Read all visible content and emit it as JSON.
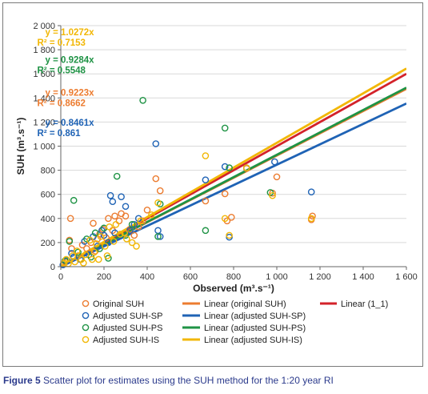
{
  "caption": {
    "label": "Figure 5",
    "text": "Scatter plot for estimates using the SUH method for the 1:20 year RI"
  },
  "chart_data": {
    "type": "scatter",
    "xlabel": "Observed (m³.s⁻¹)",
    "ylabel": "SUH (m³.s⁻¹)",
    "xlim": [
      0,
      1600
    ],
    "ylim": [
      0,
      2000
    ],
    "x_ticks": [
      "0",
      "200",
      "400",
      "600",
      "800",
      "1 000",
      "1 200",
      "1 400",
      "1 600"
    ],
    "y_ticks": [
      "0",
      "200",
      "400",
      "600",
      "800",
      "1 000",
      "1 200",
      "1 400",
      "1 600",
      "1 800",
      "2 000"
    ],
    "grid": "horizontal",
    "legend_position": "bottom",
    "annotations": [
      {
        "eq": "y = 1.0272x",
        "r2": "R² = 0.7153",
        "color": "#f2b705",
        "at": [
          150,
          1920
        ]
      },
      {
        "eq": "y = 0.9284x",
        "r2": "R² = 0.5548",
        "color": "#1f9345",
        "at": [
          150,
          1690
        ]
      },
      {
        "eq": "y = 0.9223x",
        "r2": "R² = 0.8662",
        "color": "#ec7c30",
        "at": [
          150,
          1420
        ]
      },
      {
        "eq": "y = 0.8461x",
        "r2": "R² = 0.861",
        "color": "#1f63b5",
        "at": [
          150,
          1170
        ]
      }
    ],
    "series": [
      {
        "name": "Original SUH",
        "kind": "marker",
        "color": "#ec7c30",
        "points": [
          [
            20,
            40
          ],
          [
            40,
            220
          ],
          [
            45,
            400
          ],
          [
            50,
            150
          ],
          [
            80,
            90
          ],
          [
            100,
            180
          ],
          [
            120,
            150
          ],
          [
            140,
            200
          ],
          [
            150,
            360
          ],
          [
            160,
            130
          ],
          [
            170,
            230
          ],
          [
            180,
            270
          ],
          [
            195,
            310
          ],
          [
            200,
            260
          ],
          [
            210,
            240
          ],
          [
            220,
            400
          ],
          [
            240,
            300
          ],
          [
            250,
            420
          ],
          [
            270,
            380
          ],
          [
            280,
            440
          ],
          [
            300,
            420
          ],
          [
            320,
            310
          ],
          [
            340,
            260
          ],
          [
            360,
            330
          ],
          [
            380,
            380
          ],
          [
            400,
            470
          ],
          [
            440,
            730
          ],
          [
            460,
            630
          ],
          [
            670,
            545
          ],
          [
            760,
            605
          ],
          [
            770,
            380
          ],
          [
            790,
            410
          ],
          [
            860,
            815
          ],
          [
            980,
            610
          ],
          [
            1000,
            745
          ],
          [
            1160,
            390
          ],
          [
            1165,
            420
          ]
        ]
      },
      {
        "name": "Adjusted SUH-SP",
        "kind": "marker",
        "color": "#1f63b5",
        "points": [
          [
            10,
            15
          ],
          [
            30,
            50
          ],
          [
            50,
            110
          ],
          [
            60,
            80
          ],
          [
            90,
            60
          ],
          [
            110,
            210
          ],
          [
            130,
            100
          ],
          [
            150,
            250
          ],
          [
            170,
            170
          ],
          [
            190,
            300
          ],
          [
            200,
            260
          ],
          [
            220,
            200
          ],
          [
            230,
            590
          ],
          [
            240,
            540
          ],
          [
            250,
            280
          ],
          [
            280,
            580
          ],
          [
            300,
            500
          ],
          [
            320,
            300
          ],
          [
            340,
            350
          ],
          [
            360,
            400
          ],
          [
            440,
            1020
          ],
          [
            450,
            300
          ],
          [
            460,
            250
          ],
          [
            670,
            720
          ],
          [
            760,
            830
          ],
          [
            780,
            245
          ],
          [
            860,
            820
          ],
          [
            990,
            870
          ],
          [
            1160,
            620
          ]
        ]
      },
      {
        "name": "Adjusted SUH-PS",
        "kind": "marker",
        "color": "#1f9345",
        "points": [
          [
            20,
            50
          ],
          [
            40,
            210
          ],
          [
            60,
            550
          ],
          [
            80,
            120
          ],
          [
            120,
            230
          ],
          [
            140,
            80
          ],
          [
            160,
            280
          ],
          [
            180,
            150
          ],
          [
            200,
            320
          ],
          [
            220,
            70
          ],
          [
            260,
            750
          ],
          [
            300,
            260
          ],
          [
            330,
            350
          ],
          [
            380,
            1380
          ],
          [
            450,
            250
          ],
          [
            460,
            520
          ],
          [
            670,
            300
          ],
          [
            760,
            1150
          ],
          [
            780,
            820
          ],
          [
            970,
            615
          ]
        ]
      },
      {
        "name": "Adjusted SUH-IS",
        "kind": "marker",
        "color": "#f2b705",
        "points": [
          [
            15,
            30
          ],
          [
            25,
            60
          ],
          [
            35,
            25
          ],
          [
            55,
            90
          ],
          [
            65,
            40
          ],
          [
            75,
            130
          ],
          [
            95,
            60
          ],
          [
            105,
            30
          ],
          [
            115,
            100
          ],
          [
            135,
            220
          ],
          [
            145,
            60
          ],
          [
            155,
            120
          ],
          [
            165,
            190
          ],
          [
            175,
            60
          ],
          [
            185,
            250
          ],
          [
            205,
            170
          ],
          [
            215,
            90
          ],
          [
            225,
            330
          ],
          [
            245,
            210
          ],
          [
            255,
            350
          ],
          [
            275,
            270
          ],
          [
            295,
            280
          ],
          [
            305,
            230
          ],
          [
            330,
            200
          ],
          [
            350,
            170
          ],
          [
            370,
            380
          ],
          [
            420,
            430
          ],
          [
            450,
            530
          ],
          [
            670,
            920
          ],
          [
            760,
            400
          ],
          [
            780,
            260
          ],
          [
            860,
            820
          ],
          [
            980,
            590
          ],
          [
            1160,
            400
          ]
        ]
      },
      {
        "name": "Linear (original SUH)",
        "kind": "line",
        "color": "#ec7c30",
        "slope": 0.9223
      },
      {
        "name": "Linear (adjusted SUH-SP)",
        "kind": "line",
        "color": "#1f63b5",
        "slope": 0.8461
      },
      {
        "name": "Linear (adjusted SUH-PS)",
        "kind": "line",
        "color": "#1f9345",
        "slope": 0.9284
      },
      {
        "name": "Linear (adjusted SUH-IS)",
        "kind": "line",
        "color": "#f2b705",
        "slope": 1.0272
      },
      {
        "name": "Linear (1_1)",
        "kind": "line",
        "color": "#d3222a",
        "slope": 1.0
      }
    ]
  }
}
